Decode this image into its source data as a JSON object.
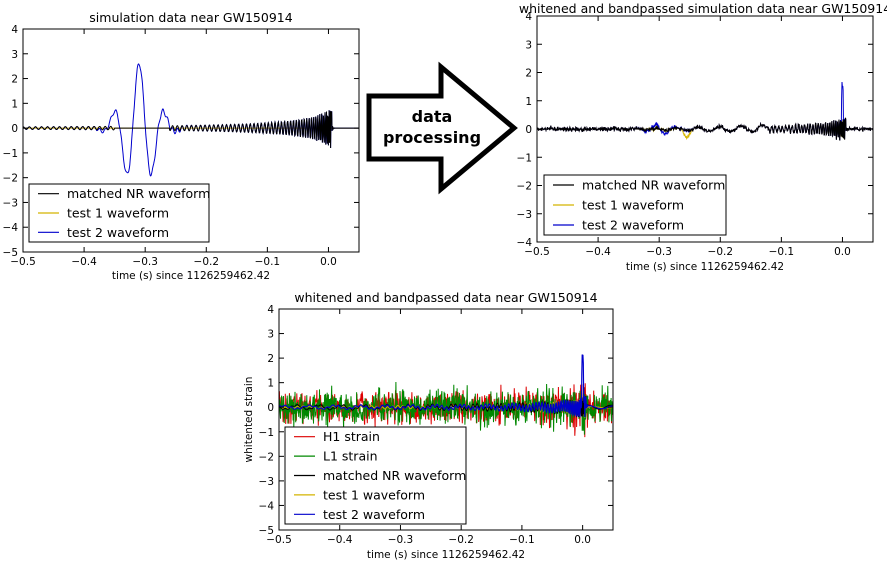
{
  "chart_data": [
    {
      "type": "line",
      "title": "simulation data near GW150914",
      "xlabel": "time (s) since 1126259462.42",
      "ylabel": "",
      "xlim": [
        -0.5,
        0.05
      ],
      "ylim": [
        -5,
        4
      ],
      "xticks": [
        "-0.5",
        "-0.4",
        "-0.3",
        "-0.2",
        "-0.1",
        "0.0"
      ],
      "yticks": [
        "-5",
        "-4",
        "-3",
        "-2",
        "-1",
        "0",
        "1",
        "2",
        "3",
        "4"
      ],
      "legend_position": "lower-left",
      "series": [
        {
          "name": "matched NR waveform",
          "color": "#000000"
        },
        {
          "name": "test 1 waveform",
          "color": "#d4b400"
        },
        {
          "name": "test 2 waveform",
          "color": "#0000cc"
        }
      ]
    },
    {
      "type": "line",
      "title": "whitened and bandpassed simulation data near GW150914",
      "xlabel": "time (s) since 1126259462.42",
      "ylabel": "",
      "xlim": [
        -0.5,
        0.05
      ],
      "ylim": [
        -4,
        4
      ],
      "xticks": [
        "-0.5",
        "-0.4",
        "-0.3",
        "-0.2",
        "-0.1",
        "0.0"
      ],
      "yticks": [
        "-4",
        "-3",
        "-2",
        "-1",
        "0",
        "1",
        "2",
        "3",
        "4"
      ],
      "legend_position": "lower-left",
      "series": [
        {
          "name": "matched NR waveform",
          "color": "#000000"
        },
        {
          "name": "test 1 waveform",
          "color": "#d4b400"
        },
        {
          "name": "test 2 waveform",
          "color": "#0000cc"
        }
      ]
    },
    {
      "type": "line",
      "title": "whitened and bandpassed data near GW150914",
      "xlabel": "time (s) since 1126259462.42",
      "ylabel": "whitented strain",
      "xlim": [
        -0.5,
        0.05
      ],
      "ylim": [
        -5,
        4
      ],
      "xticks": [
        "-0.5",
        "-0.4",
        "-0.3",
        "-0.2",
        "-0.1",
        "0.0"
      ],
      "yticks": [
        "-5",
        "-4",
        "-3",
        "-2",
        "-1",
        "0",
        "1",
        "2",
        "3",
        "4"
      ],
      "legend_position": "lower-left",
      "series": [
        {
          "name": "H1 strain",
          "color": "#dd0000"
        },
        {
          "name": "L1 strain",
          "color": "#008800"
        },
        {
          "name": "matched NR waveform",
          "color": "#000000"
        },
        {
          "name": "test 1 waveform",
          "color": "#d4b400"
        },
        {
          "name": "test 2 waveform",
          "color": "#0000cc"
        }
      ]
    }
  ],
  "arrow": {
    "line1": "data",
    "line2": "processing"
  }
}
